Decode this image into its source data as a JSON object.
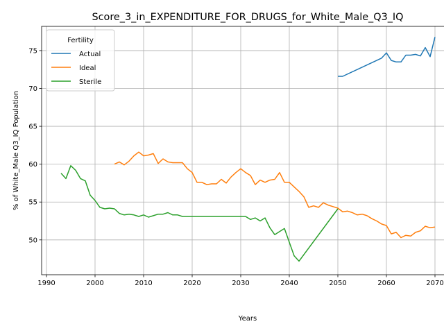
{
  "chart_data": {
    "type": "line",
    "title": "Score_3_in_EXPENDITURE_FOR_DRUGS_for_White_Male_Q3_IQ",
    "xlabel": "Years",
    "ylabel": "% of White_Male Q3_IQ Population",
    "xlim": [
      1989,
      2074
    ],
    "ylim": [
      45.4,
      78.2
    ],
    "xticks": [
      1990,
      2000,
      2010,
      2020,
      2030,
      2040,
      2050,
      2060,
      2070
    ],
    "yticks": [
      50,
      55,
      60,
      65,
      70,
      75
    ],
    "grid": true,
    "legend": {
      "title": "Fertility",
      "placement": "upper-left"
    },
    "series": [
      {
        "name": "Actual",
        "color": "#1f77b4",
        "points": [
          [
            2050,
            71.6
          ],
          [
            2051,
            71.6
          ],
          [
            2059,
            74.0
          ],
          [
            2060,
            74.7
          ],
          [
            2061,
            73.7
          ],
          [
            2062,
            73.5
          ],
          [
            2063,
            73.5
          ],
          [
            2064,
            74.4
          ],
          [
            2065,
            74.4
          ],
          [
            2066,
            74.5
          ],
          [
            2067,
            74.3
          ],
          [
            2068,
            75.4
          ],
          [
            2069,
            74.2
          ],
          [
            2070,
            76.8
          ]
        ]
      },
      {
        "name": "Ideal",
        "color": "#ff7f0e",
        "points": [
          [
            2004,
            60.0
          ],
          [
            2005,
            60.3
          ],
          [
            2006,
            59.9
          ],
          [
            2007,
            60.4
          ],
          [
            2008,
            61.1
          ],
          [
            2009,
            61.6
          ],
          [
            2010,
            61.1
          ],
          [
            2011,
            61.2
          ],
          [
            2012,
            61.4
          ],
          [
            2013,
            60.1
          ],
          [
            2014,
            60.7
          ],
          [
            2015,
            60.3
          ],
          [
            2016,
            60.2
          ],
          [
            2017,
            60.2
          ],
          [
            2018,
            60.2
          ],
          [
            2019,
            59.4
          ],
          [
            2020,
            58.9
          ],
          [
            2021,
            57.6
          ],
          [
            2022,
            57.6
          ],
          [
            2023,
            57.3
          ],
          [
            2024,
            57.4
          ],
          [
            2025,
            57.4
          ],
          [
            2026,
            58.0
          ],
          [
            2027,
            57.5
          ],
          [
            2028,
            58.3
          ],
          [
            2029,
            58.9
          ],
          [
            2030,
            59.4
          ],
          [
            2031,
            58.9
          ],
          [
            2032,
            58.5
          ],
          [
            2033,
            57.3
          ],
          [
            2034,
            57.9
          ],
          [
            2035,
            57.6
          ],
          [
            2036,
            57.9
          ],
          [
            2037,
            58.0
          ],
          [
            2038,
            58.9
          ],
          [
            2039,
            57.6
          ],
          [
            2040,
            57.6
          ],
          [
            2041,
            57.0
          ],
          [
            2042,
            56.4
          ],
          [
            2043,
            55.7
          ],
          [
            2044,
            54.3
          ],
          [
            2045,
            54.5
          ],
          [
            2046,
            54.3
          ],
          [
            2047,
            54.9
          ],
          [
            2048,
            54.6
          ],
          [
            2049,
            54.4
          ],
          [
            2050,
            54.2
          ],
          [
            2051,
            53.7
          ],
          [
            2052,
            53.8
          ],
          [
            2053,
            53.6
          ],
          [
            2054,
            53.3
          ],
          [
            2055,
            53.4
          ],
          [
            2056,
            53.2
          ],
          [
            2057,
            52.8
          ],
          [
            2058,
            52.5
          ],
          [
            2059,
            52.1
          ],
          [
            2060,
            51.9
          ],
          [
            2061,
            50.8
          ],
          [
            2062,
            51.0
          ],
          [
            2063,
            50.3
          ],
          [
            2064,
            50.6
          ],
          [
            2065,
            50.5
          ],
          [
            2066,
            51.0
          ],
          [
            2067,
            51.2
          ],
          [
            2068,
            51.8
          ],
          [
            2069,
            51.6
          ],
          [
            2070,
            51.7
          ]
        ]
      },
      {
        "name": "Sterile",
        "color": "#2ca02c",
        "points": [
          [
            1993,
            58.8
          ],
          [
            1994,
            58.1
          ],
          [
            1995,
            59.8
          ],
          [
            1996,
            59.2
          ],
          [
            1997,
            58.1
          ],
          [
            1998,
            57.8
          ],
          [
            1999,
            55.9
          ],
          [
            2000,
            55.2
          ],
          [
            2001,
            54.3
          ],
          [
            2002,
            54.1
          ],
          [
            2003,
            54.2
          ],
          [
            2004,
            54.1
          ],
          [
            2005,
            53.5
          ],
          [
            2006,
            53.3
          ],
          [
            2007,
            53.4
          ],
          [
            2008,
            53.3
          ],
          [
            2009,
            53.1
          ],
          [
            2010,
            53.3
          ],
          [
            2011,
            53.0
          ],
          [
            2012,
            53.2
          ],
          [
            2013,
            53.4
          ],
          [
            2014,
            53.4
          ],
          [
            2015,
            53.6
          ],
          [
            2016,
            53.3
          ],
          [
            2017,
            53.3
          ],
          [
            2018,
            53.1
          ],
          [
            2031,
            53.1
          ],
          [
            2032,
            52.7
          ],
          [
            2033,
            52.9
          ],
          [
            2034,
            52.5
          ],
          [
            2035,
            52.9
          ],
          [
            2036,
            51.6
          ],
          [
            2037,
            50.7
          ],
          [
            2038,
            51.1
          ],
          [
            2039,
            51.5
          ],
          [
            2040,
            49.7
          ],
          [
            2041,
            47.9
          ],
          [
            2042,
            47.2
          ],
          [
            2050,
            54.1
          ]
        ]
      }
    ]
  }
}
